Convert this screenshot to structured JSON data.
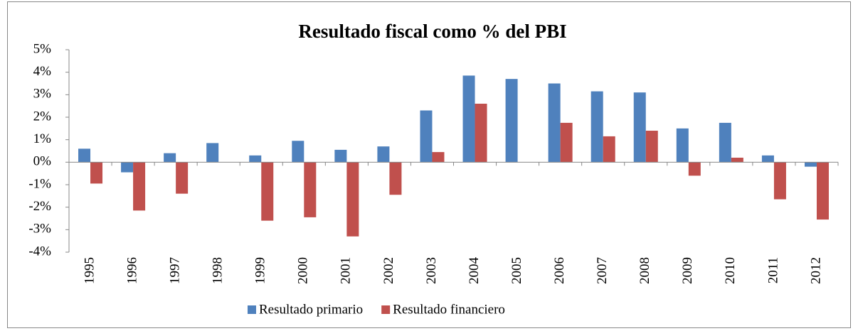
{
  "chart_data": {
    "type": "bar",
    "title": "Resultado fiscal como % del PBI",
    "categories": [
      "1995",
      "1996",
      "1997",
      "1998",
      "1999",
      "2000",
      "2001",
      "2002",
      "2003",
      "2004",
      "2005",
      "2006",
      "2007",
      "2008",
      "2009",
      "2010",
      "2011",
      "2012"
    ],
    "series": [
      {
        "name": "Resultado primario",
        "color": "#4f81bd",
        "values": [
          0.6,
          -0.45,
          0.4,
          0.85,
          0.3,
          0.95,
          0.55,
          0.7,
          2.3,
          3.85,
          3.7,
          3.5,
          3.15,
          3.1,
          1.5,
          1.75,
          0.3,
          -0.2
        ]
      },
      {
        "name": "Resultado financiero",
        "color": "#c0504d",
        "values": [
          -0.95,
          -2.15,
          -1.4,
          0,
          -2.6,
          -2.45,
          -3.3,
          -1.45,
          0.45,
          2.6,
          0,
          1.75,
          1.15,
          1.4,
          -0.6,
          0.2,
          -1.65,
          -2.55
        ]
      }
    ],
    "ylim": [
      -4,
      5
    ],
    "yticks": [
      {
        "value": -4,
        "label": "-4%"
      },
      {
        "value": -3,
        "label": "-3%"
      },
      {
        "value": -2,
        "label": "-2%"
      },
      {
        "value": -1,
        "label": "-1%"
      },
      {
        "value": 0,
        "label": "0%"
      },
      {
        "value": 1,
        "label": "1%"
      },
      {
        "value": 2,
        "label": "2%"
      },
      {
        "value": 3,
        "label": "3%"
      },
      {
        "value": 4,
        "label": "4%"
      },
      {
        "value": 5,
        "label": "5%"
      }
    ],
    "grid": false,
    "legend": "bottom"
  }
}
